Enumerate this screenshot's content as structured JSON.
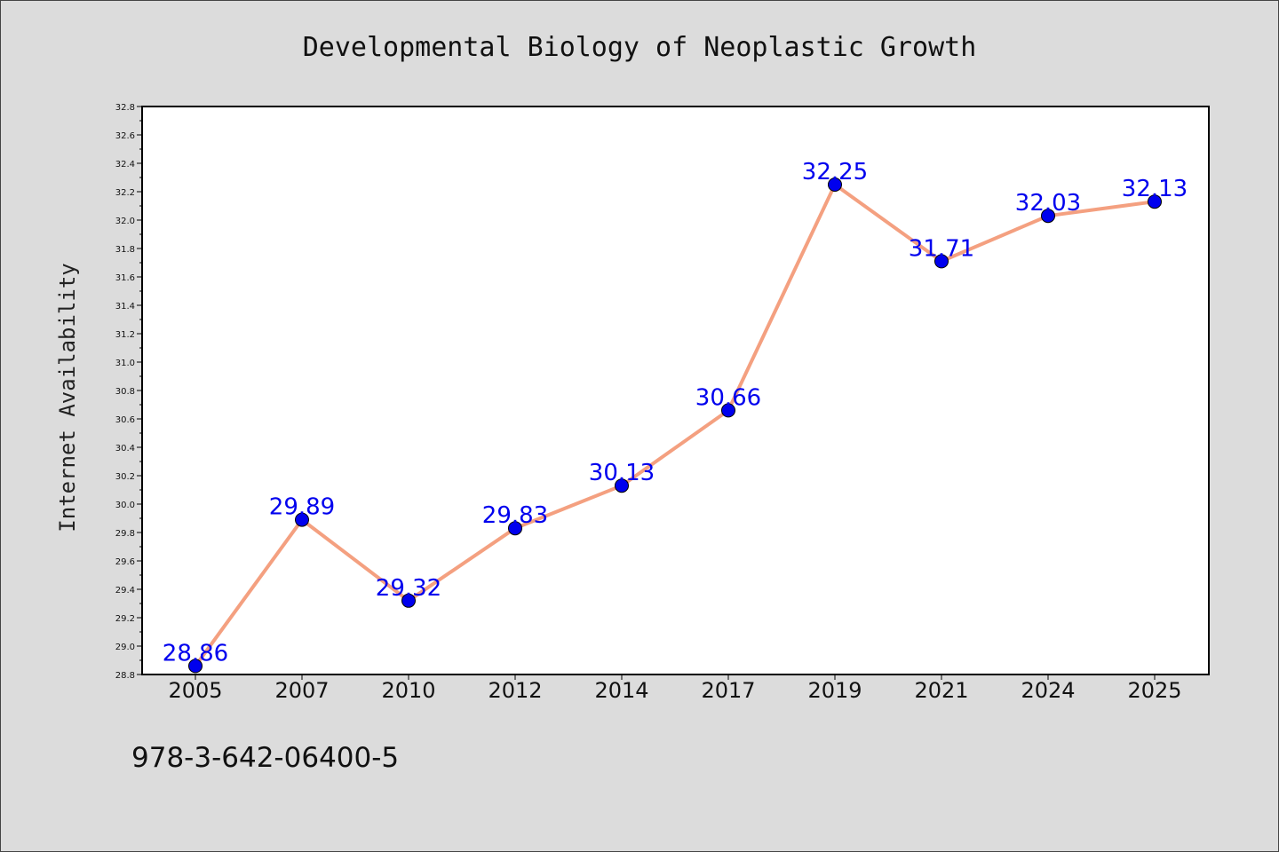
{
  "chart_data": {
    "type": "line",
    "title": "Developmental Biology of Neoplastic Growth",
    "xlabel": "",
    "ylabel": "Internet Availability",
    "categories": [
      "2005",
      "2007",
      "2010",
      "2012",
      "2014",
      "2017",
      "2019",
      "2021",
      "2024",
      "2025"
    ],
    "series": [
      {
        "values": [
          28.86,
          29.89,
          29.32,
          29.83,
          30.13,
          30.66,
          32.25,
          31.71,
          32.03,
          32.13
        ],
        "labels": [
          "28.86",
          "29.89",
          "29.32",
          "29.83",
          "30.13",
          "30.66",
          "32.25",
          "31.71",
          "32.03",
          "32.13"
        ],
        "line_color": "#f4a080",
        "marker_color": "#0000ee",
        "label_color": "#0000ee"
      }
    ],
    "ylim": [
      28.8,
      32.8
    ],
    "yticks": [
      "28.8",
      "29.0",
      "29.2",
      "29.4",
      "29.6",
      "29.8",
      "30.0",
      "30.2",
      "30.4",
      "30.6",
      "30.8",
      "31.0",
      "31.2",
      "31.4",
      "31.6",
      "31.8",
      "32.0",
      "32.2",
      "32.4",
      "32.6",
      "32.8"
    ],
    "grid": false,
    "legend": "none"
  },
  "footer": {
    "isbn": "978-3-642-06400-5"
  }
}
